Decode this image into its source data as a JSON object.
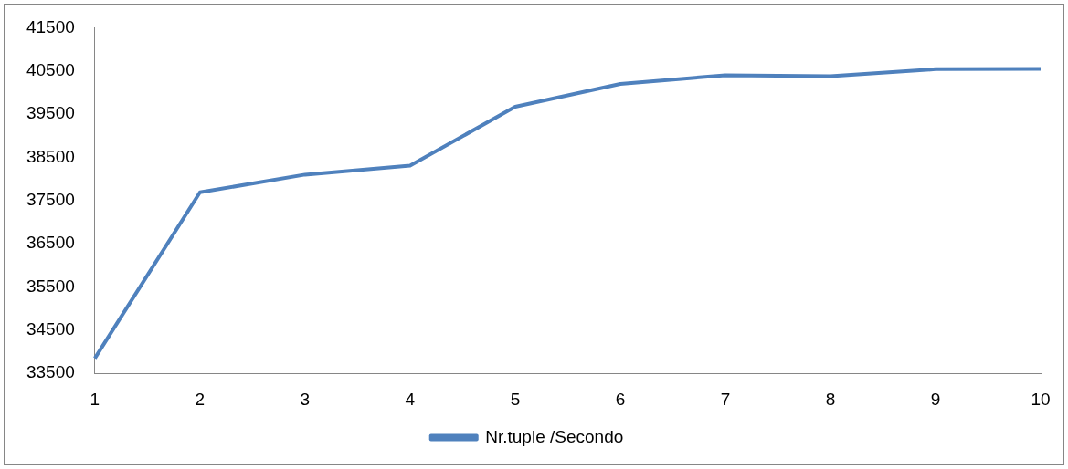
{
  "chart_data": {
    "type": "line",
    "categories": [
      "1",
      "2",
      "3",
      "4",
      "5",
      "6",
      "7",
      "8",
      "9",
      "10"
    ],
    "series": [
      {
        "name": "Nr.tuple /Secondo",
        "color": "#4f81bd",
        "values": [
          33850,
          37690,
          38100,
          38310,
          39670,
          40200,
          40400,
          40380,
          40540,
          40550
        ]
      }
    ],
    "ylim": [
      33500,
      41500
    ],
    "yticks": [
      33500,
      34500,
      35500,
      36500,
      37500,
      38500,
      39500,
      40500,
      41500
    ],
    "grid": false,
    "legend": "bottom",
    "marker": "none",
    "line_style": "solid"
  }
}
